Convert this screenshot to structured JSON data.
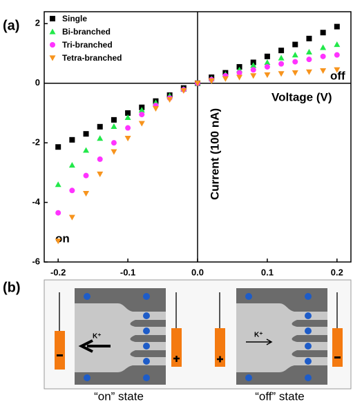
{
  "chart_data": {
    "type": "scatter",
    "panel_label": "(a)",
    "x_label": "Voltage (V)",
    "y_label": "Current (100 nA)",
    "annotations": [
      "on",
      "off"
    ],
    "x": [
      -0.2,
      -0.18,
      -0.16,
      -0.14,
      -0.12,
      -0.1,
      -0.08,
      -0.06,
      -0.04,
      -0.02,
      0,
      0.02,
      0.04,
      0.06,
      0.08,
      0.1,
      0.12,
      0.14,
      0.16,
      0.18,
      0.2
    ],
    "series": [
      {
        "name": "Single",
        "color": "#000000",
        "marker": "square",
        "values": [
          -2.14,
          -1.9,
          -1.7,
          -1.46,
          -1.23,
          -1.0,
          -0.81,
          -0.6,
          -0.4,
          -0.16,
          0,
          0.2,
          0.35,
          0.55,
          0.7,
          0.9,
          1.1,
          1.3,
          1.5,
          1.7,
          1.9
        ]
      },
      {
        "name": "Bi-branched",
        "color": "#22e84a",
        "marker": "triangle-up",
        "values": [
          -3.4,
          -2.75,
          -2.25,
          -1.85,
          -1.45,
          -1.15,
          -0.9,
          -0.65,
          -0.42,
          -0.2,
          0,
          0.15,
          0.3,
          0.45,
          0.6,
          0.7,
          0.85,
          0.95,
          1.05,
          1.2,
          1.3
        ]
      },
      {
        "name": "Tri-branched",
        "color": "#ff33ff",
        "marker": "circle",
        "values": [
          -4.35,
          -3.6,
          -3.1,
          -2.55,
          -2.0,
          -1.5,
          -1.05,
          -0.75,
          -0.5,
          -0.22,
          0,
          0.12,
          0.25,
          0.35,
          0.45,
          0.55,
          0.65,
          0.72,
          0.8,
          0.9,
          0.95
        ]
      },
      {
        "name": "Tetra-branched",
        "color": "#f7941d",
        "marker": "triangle-down",
        "values": [
          -5.3,
          -4.5,
          -3.7,
          -3.05,
          -2.3,
          -1.85,
          -1.35,
          -0.85,
          -0.55,
          -0.25,
          0,
          0.08,
          0.15,
          0.2,
          0.25,
          0.28,
          0.32,
          0.35,
          0.38,
          0.42,
          0.45
        ]
      }
    ],
    "xlim": [
      -0.22,
      0.22
    ],
    "ylim": [
      -6,
      2.4
    ],
    "xticks": [
      -0.2,
      -0.1,
      {
        "value": 0,
        "label": "0.0"
      },
      0.1,
      0.2
    ],
    "yticks": [
      -6,
      -4,
      -2,
      0,
      2
    ],
    "legend": "upper left",
    "grid": false
  },
  "diagram": {
    "panel_label": "(b)",
    "ion_label": "K⁺",
    "states": [
      "“on” state",
      "“off” state"
    ]
  }
}
